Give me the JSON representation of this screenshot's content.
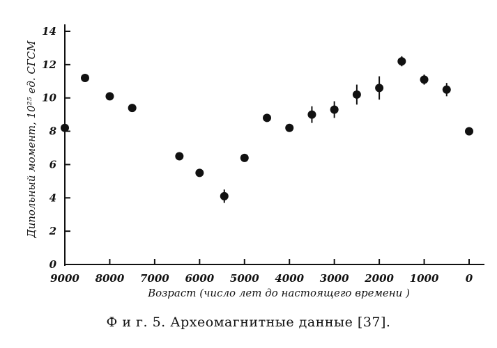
{
  "chart_data": {
    "type": "scatter",
    "title": "",
    "xlabel": "Возраст (число лет до настоящего времени )",
    "ylabel": "Дипольный момент, 10²⁵ ед. СГСМ",
    "xlim": [
      9000,
      0
    ],
    "ylim": [
      0,
      14
    ],
    "x_ticks": [
      9000,
      8000,
      7000,
      6000,
      5000,
      4000,
      3000,
      2000,
      1000,
      0
    ],
    "y_ticks": [
      0,
      2,
      4,
      6,
      8,
      10,
      12,
      14
    ],
    "grid": false,
    "legend": "none",
    "points": [
      {
        "x": 9000,
        "y": 8.2
      },
      {
        "x": 8550,
        "y": 11.2
      },
      {
        "x": 8000,
        "y": 10.1
      },
      {
        "x": 7500,
        "y": 9.4
      },
      {
        "x": 6450,
        "y": 6.5
      },
      {
        "x": 6000,
        "y": 5.5
      },
      {
        "x": 5450,
        "y": 4.1,
        "err": 0.4
      },
      {
        "x": 5000,
        "y": 6.4
      },
      {
        "x": 4500,
        "y": 8.8
      },
      {
        "x": 4000,
        "y": 8.2
      },
      {
        "x": 3500,
        "y": 9.0,
        "err": 0.5
      },
      {
        "x": 3000,
        "y": 9.3,
        "err": 0.5
      },
      {
        "x": 2500,
        "y": 10.2,
        "err": 0.6
      },
      {
        "x": 2000,
        "y": 10.6,
        "err": 0.7
      },
      {
        "x": 1500,
        "y": 12.2,
        "err": 0.3
      },
      {
        "x": 1000,
        "y": 11.1,
        "err": 0.3
      },
      {
        "x": 500,
        "y": 10.5,
        "err": 0.4
      },
      {
        "x": 0,
        "y": 8.0
      }
    ],
    "marker_color": "#111111"
  },
  "caption": "Ф и г. 5. Археомагнитные данные [37]."
}
